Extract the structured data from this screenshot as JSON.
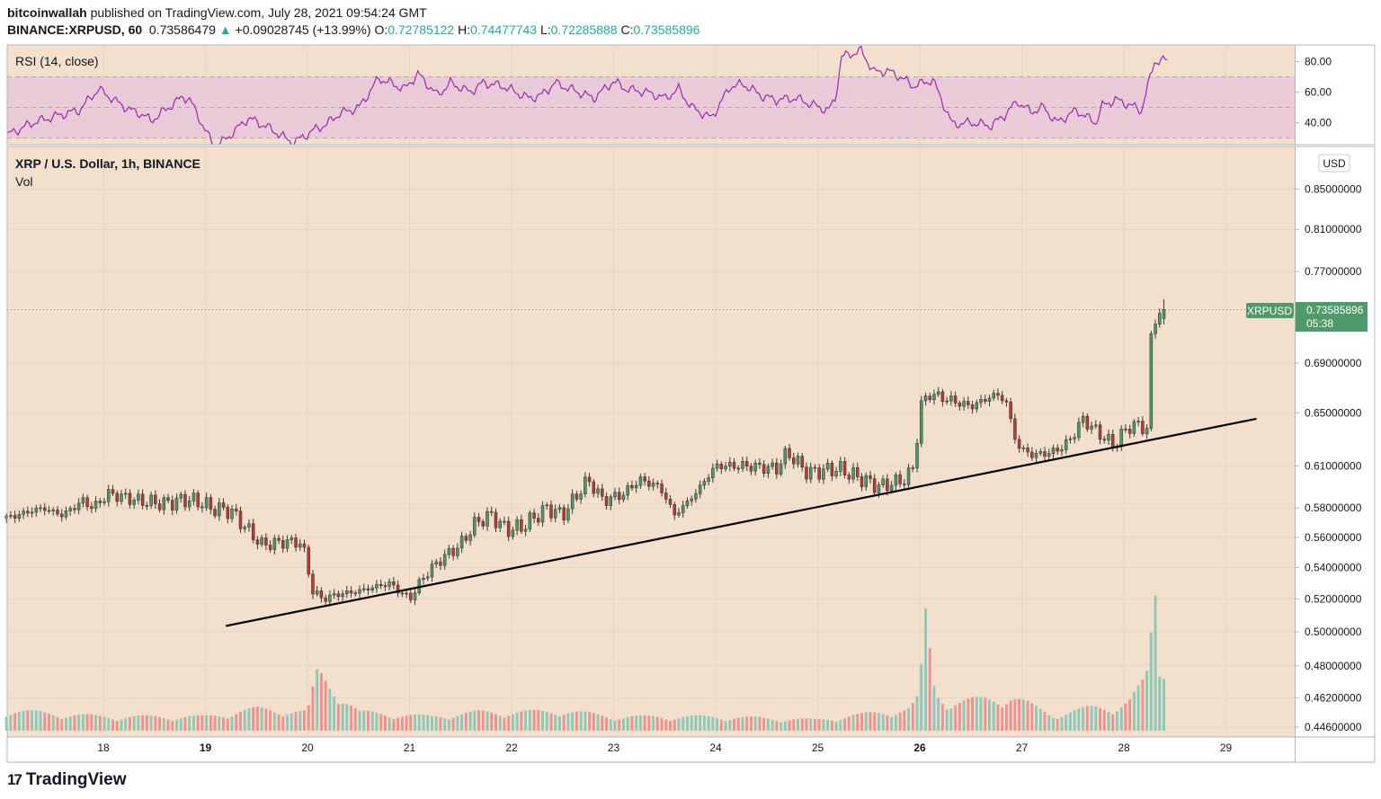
{
  "header": {
    "author": "bitcoinwallah",
    "published": " published on TradingView.com, July 28, 2021 09:54:24 GMT",
    "symbol": "BINANCE:XRPUSD, 60",
    "last": "0.73586479",
    "change_arrow": "▲",
    "change": "+0.09028745 (+13.99%)",
    "o_label": "O:",
    "o_value": "0.72785122",
    "h_label": "H:",
    "h_value": "0.74477743",
    "l_label": "L:",
    "l_value": "0.72285888",
    "c_label": "C:",
    "c_value": "0.73585896"
  },
  "colors": {
    "background": "#f2e0cd",
    "rsi_band": "#e8cbd6",
    "rsi_line": "#9c27b0",
    "up_candle": "#4e9a6a",
    "down_candle": "#c0392b",
    "vol_up": "#8cc9b8",
    "vol_down": "#f19090",
    "price_badge": "#4e9a6a",
    "trendline": "#000000"
  },
  "footer": {
    "brand": "TradingView",
    "logo_glyph": "17"
  },
  "chart_data": [
    {
      "type": "line",
      "title": "RSI (14, close)",
      "x_range": [
        0,
        178
      ],
      "ylim": [
        29.5,
        88
      ],
      "y_ticks": [
        "80.00",
        "60.00",
        "40.00"
      ],
      "y_tick_values": [
        80,
        60,
        40
      ],
      "bands": [
        30,
        50,
        70
      ],
      "x_points": [
        0,
        4,
        8,
        11,
        14,
        17,
        19,
        21,
        22,
        26,
        27,
        28,
        31,
        32,
        34,
        37,
        40,
        43,
        44,
        47,
        49,
        51,
        54,
        57,
        61,
        63,
        66,
        68,
        71,
        73,
        76,
        80,
        82,
        84,
        87,
        90,
        93,
        95,
        98,
        101,
        103,
        105,
        108,
        111,
        113,
        116,
        118,
        121,
        124,
        126,
        127,
        128,
        131,
        133,
        135,
        137,
        139,
        142,
        145,
        148,
        151,
        153,
        155,
        157,
        159,
        161,
        164,
        167,
        168,
        170,
        172,
        174,
        176,
        178
      ],
      "values": [
        32,
        40,
        45,
        48,
        62,
        53,
        48,
        45,
        41,
        54,
        57,
        55,
        30,
        24,
        31,
        43,
        37,
        29,
        27,
        35,
        39,
        46,
        50,
        69,
        62,
        72,
        58,
        66,
        60,
        66,
        64,
        56,
        58,
        66,
        61,
        56,
        67,
        62,
        60,
        56,
        62,
        50,
        43,
        64,
        65,
        57,
        55,
        56,
        51,
        48,
        55,
        83,
        87,
        73,
        74,
        70,
        64,
        68,
        39,
        40,
        38,
        45,
        54,
        47,
        50,
        40,
        48,
        40,
        51,
        55,
        52,
        48,
        80,
        81
      ]
    },
    {
      "type": "candlestick",
      "title": "XRP / U.S. Dollar, 1h, BINANCE",
      "volume_label": "Vol",
      "currency": "USD",
      "y_scale": "log",
      "ylim": [
        0.44,
        0.9
      ],
      "y_ticks": [
        "0.85000000",
        "0.81000000",
        "0.77000000",
        "0.69000000",
        "0.65000000",
        "0.61000000",
        "0.58000000",
        "0.56000000",
        "0.54000000",
        "0.52000000",
        "0.50000000",
        "0.48000000",
        "0.46200000",
        "0.44600000"
      ],
      "y_tick_values": [
        0.85,
        0.81,
        0.77,
        0.69,
        0.65,
        0.61,
        0.58,
        0.56,
        0.54,
        0.52,
        0.5,
        0.48,
        0.462,
        0.446
      ],
      "x_tick_labels": [
        "18",
        "19",
        "20",
        "21",
        "22",
        "23",
        "24",
        "25",
        "26",
        "27",
        "28",
        "29"
      ],
      "x_tick_values": [
        18,
        19,
        20,
        21,
        22,
        23,
        24,
        25,
        26,
        27,
        28,
        29
      ],
      "x_tick_bold": [
        false,
        true,
        false,
        false,
        false,
        false,
        false,
        false,
        true,
        false,
        false,
        false
      ],
      "x_range": [
        17.05,
        29.7
      ],
      "candle_days": 0.0417,
      "close_key_days": [
        17.05,
        17.4,
        17.6,
        17.8,
        17.9,
        18.05,
        18.35,
        18.6,
        18.8,
        18.95,
        19.05,
        19.25,
        19.35,
        19.55,
        19.8,
        19.95,
        20.05,
        20.15,
        20.3,
        20.5,
        20.8,
        21.0,
        21.15,
        21.3,
        21.5,
        21.65,
        21.8,
        21.95,
        22.1,
        22.35,
        22.5,
        22.75,
        22.9,
        23.1,
        23.25,
        23.45,
        23.6,
        23.8,
        24.0,
        24.3,
        24.6,
        24.7,
        24.9,
        25.2,
        25.45,
        25.6,
        25.85,
        25.95,
        26.0,
        26.1,
        26.3,
        26.5,
        26.75,
        26.85,
        26.95,
        27.1,
        27.3,
        27.45,
        27.6,
        27.7,
        27.9,
        28.05,
        28.2,
        28.25,
        28.27,
        28.34,
        28.4
      ],
      "close_key_values": [
        0.573,
        0.58,
        0.575,
        0.585,
        0.58,
        0.59,
        0.585,
        0.583,
        0.586,
        0.584,
        0.58,
        0.578,
        0.57,
        0.555,
        0.557,
        0.556,
        0.525,
        0.52,
        0.523,
        0.525,
        0.53,
        0.52,
        0.535,
        0.545,
        0.555,
        0.57,
        0.575,
        0.565,
        0.567,
        0.58,
        0.575,
        0.6,
        0.585,
        0.59,
        0.6,
        0.595,
        0.575,
        0.59,
        0.61,
        0.61,
        0.608,
        0.62,
        0.605,
        0.608,
        0.6,
        0.595,
        0.6,
        0.61,
        0.655,
        0.665,
        0.66,
        0.655,
        0.665,
        0.658,
        0.625,
        0.618,
        0.62,
        0.627,
        0.645,
        0.638,
        0.625,
        0.64,
        0.64,
        0.635,
        0.72,
        0.735,
        0.736
      ],
      "volume_key_days": [
        17.05,
        18.0,
        19.0,
        19.5,
        20.0,
        20.1,
        20.5,
        21.2,
        21.7,
        22.2,
        22.5,
        23.0,
        24.0,
        25.0,
        25.9,
        26.0,
        26.05,
        26.15,
        26.3,
        26.9,
        27.3,
        27.7,
        27.9,
        28.05,
        28.2,
        28.25,
        28.3,
        28.35,
        28.4
      ],
      "volume_key_values": [
        13,
        9,
        9,
        14,
        12,
        38,
        12,
        9,
        12,
        12,
        13,
        9,
        9,
        7,
        14,
        22,
        76,
        25,
        18,
        22,
        10,
        15,
        15,
        19,
        31,
        40,
        100,
        39,
        36
      ],
      "last_candle": {
        "open": 0.72785122,
        "high": 0.74477743,
        "low": 0.72285888,
        "close": 0.73585896
      },
      "last_price_label": "XRPUSD",
      "last_price_value": "0.73585896",
      "countdown": "05:38",
      "trendline": {
        "x": [
          19.2,
          29.3
        ],
        "y": [
          0.5035,
          0.6455
        ]
      }
    }
  ]
}
